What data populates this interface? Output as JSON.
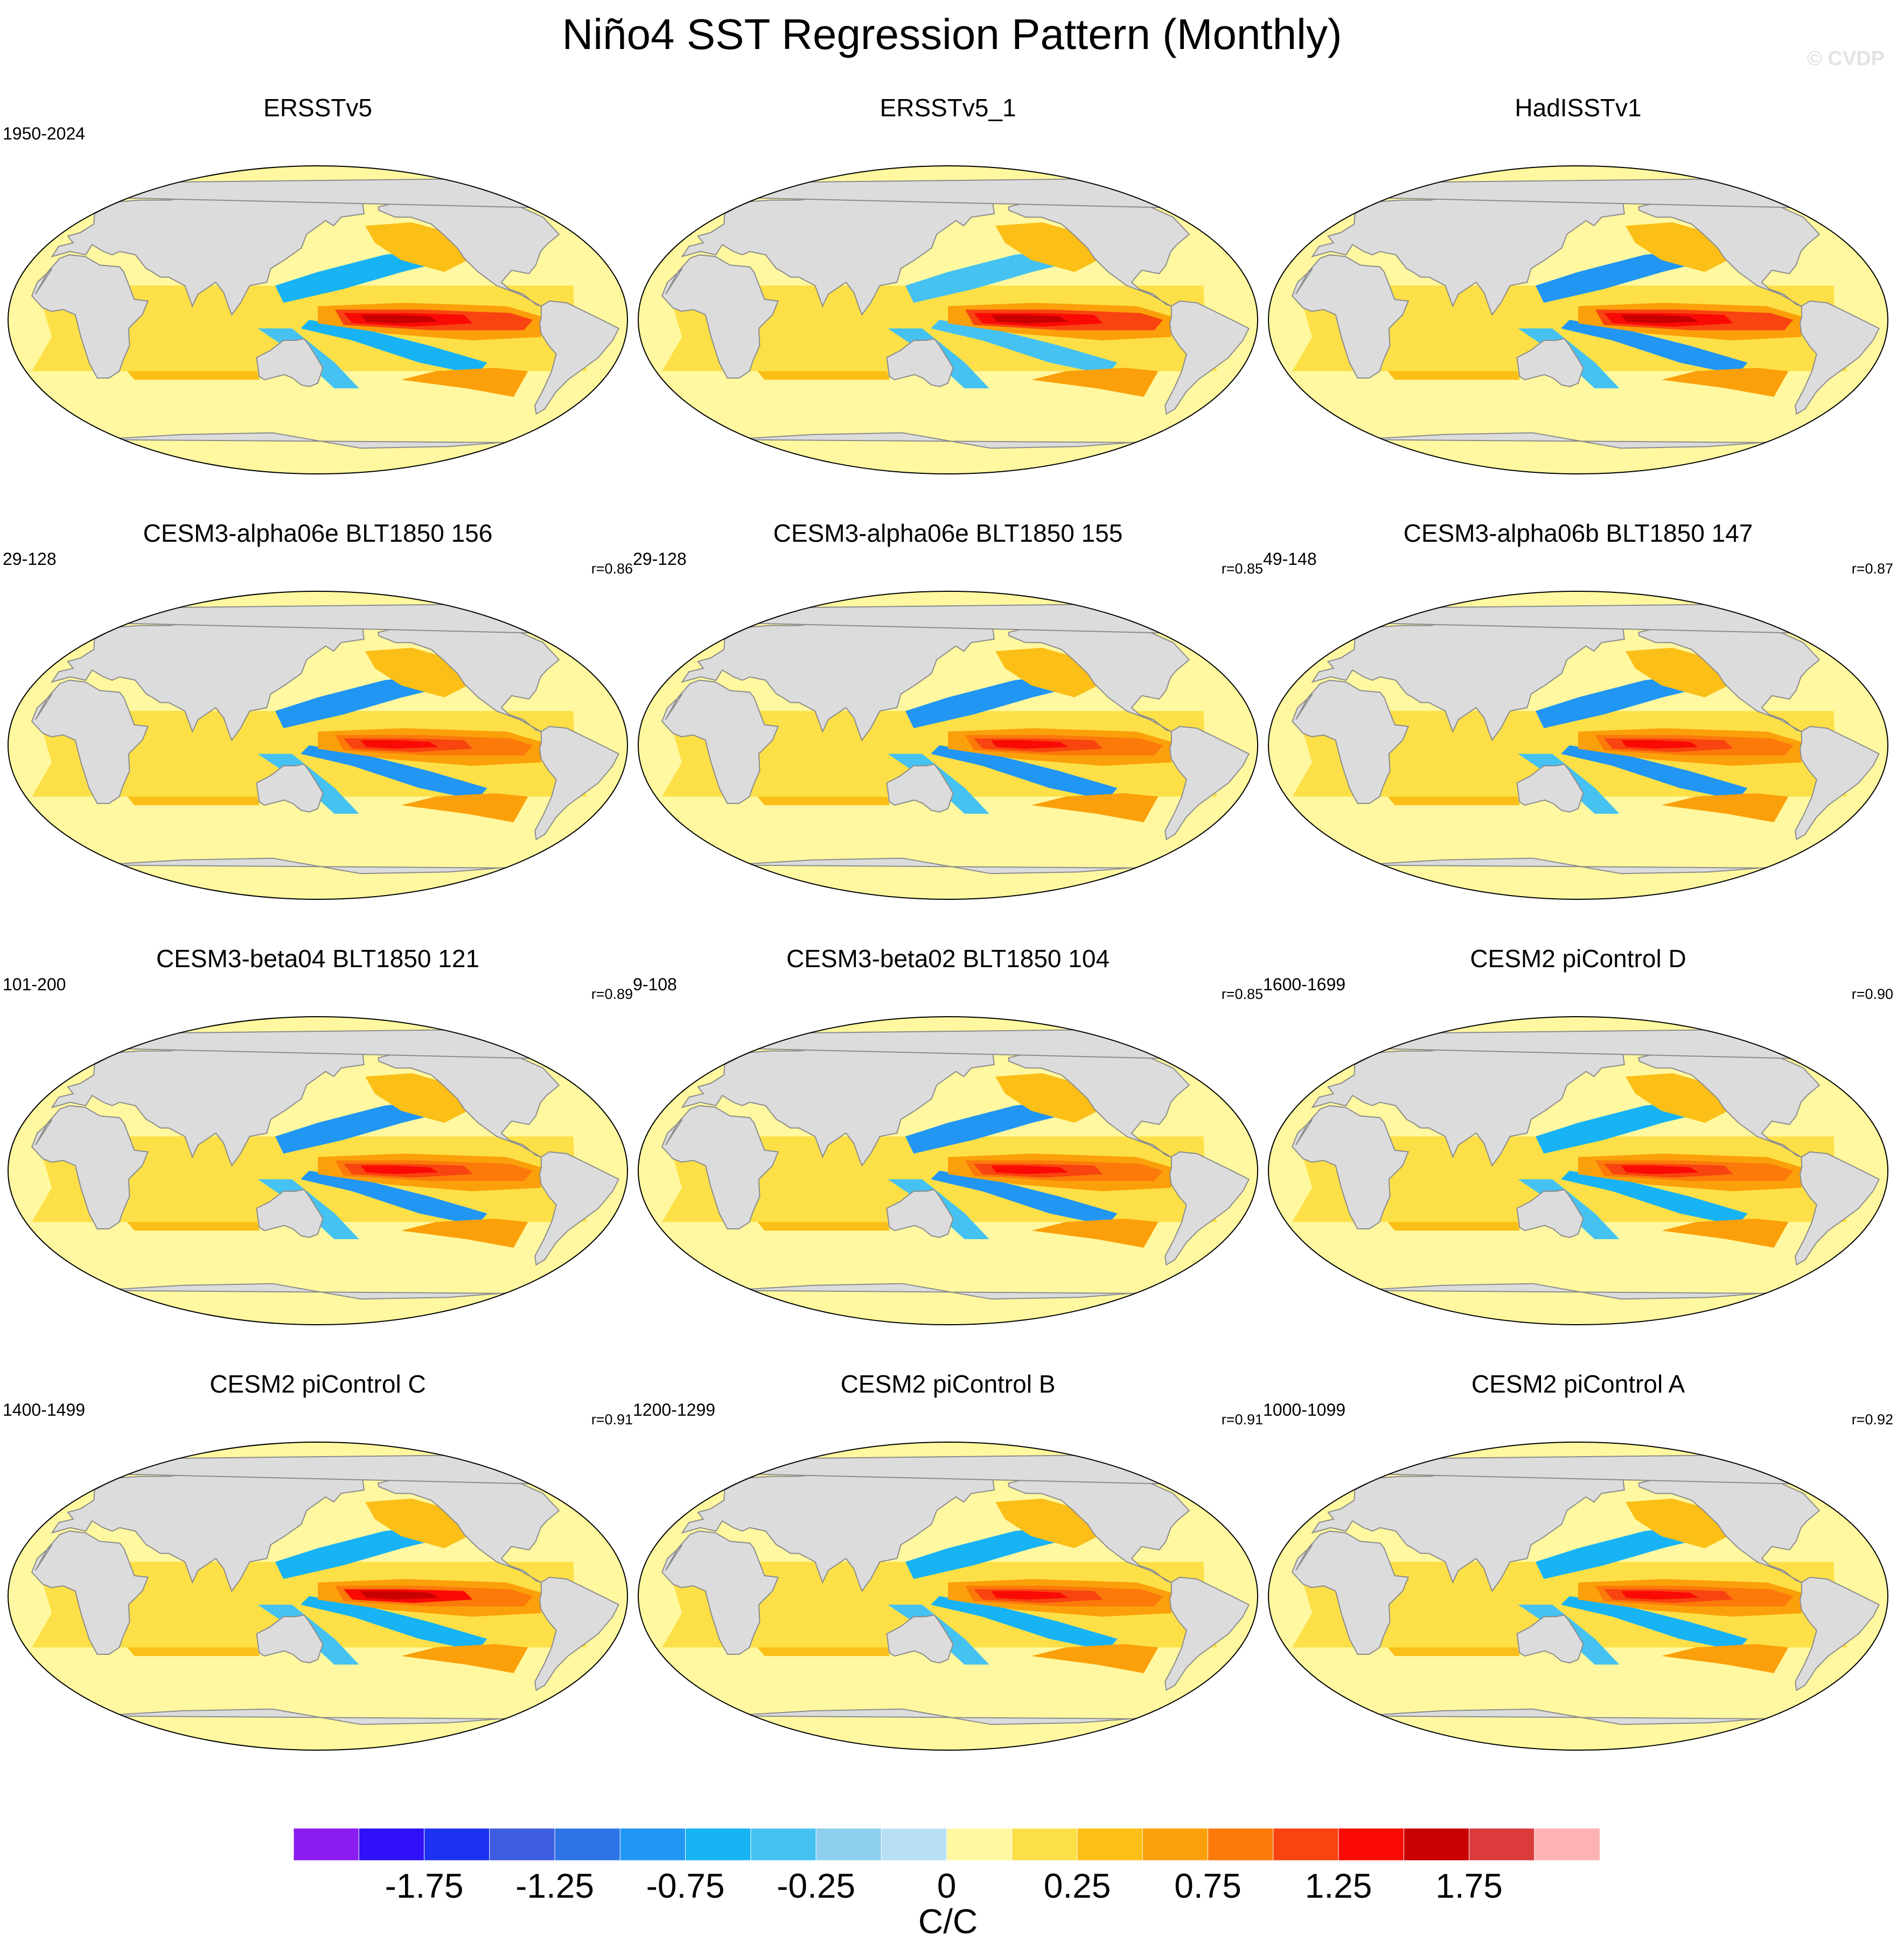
{
  "title": "Niño4 SST Regression Pattern (Monthly)",
  "watermark": "© CVDP",
  "chart_data": {
    "type": "heatmap",
    "projection": "robinson",
    "variable": "SST regression onto Niño4 index",
    "units": "C/C",
    "colorbar": {
      "levels": [
        -2.0,
        -1.75,
        -1.5,
        -1.25,
        -1.0,
        -0.75,
        -0.5,
        -0.25,
        -0.1,
        0.0,
        0.1,
        0.25,
        0.5,
        0.75,
        1.0,
        1.25,
        1.5,
        1.75,
        2.0
      ],
      "colors": [
        "#8a1cf0",
        "#3010fa",
        "#1d32f0",
        "#3d5ce0",
        "#2f74e6",
        "#2196f3",
        "#17b3f5",
        "#45c2f2",
        "#8ecfee",
        "#b8e0f5",
        "#fff8a0",
        "#fde047",
        "#fbbf17",
        "#fba00a",
        "#fb7a0a",
        "#f84410",
        "#fa0a05",
        "#c80000",
        "#dc3b3b",
        "#feb3b3"
      ],
      "tick_labels": [
        "-1.75",
        "-1.25",
        "-0.75",
        "-0.25",
        "0",
        "0.25",
        "0.75",
        "1.25",
        "1.75"
      ],
      "tick_values": [
        -1.75,
        -1.25,
        -0.75,
        -0.25,
        0.0,
        0.25,
        0.75,
        1.25,
        1.75
      ]
    },
    "panels": [
      {
        "title": "ERSSTv5",
        "years": "1950-2024",
        "r": "",
        "central_pacific_max": 1.6,
        "east_pacific_max": 1.1,
        "offequator_min": -0.6
      },
      {
        "title": "ERSSTv5_1",
        "years": "",
        "r": "",
        "central_pacific_max": 1.6,
        "east_pacific_max": 1.0,
        "offequator_min": -0.5
      },
      {
        "title": "HadISSTv1",
        "years": "",
        "r": "",
        "central_pacific_max": 1.7,
        "east_pacific_max": 1.2,
        "offequator_min": -0.8
      },
      {
        "title": "CESM3-alpha06e BLT1850 156",
        "years": "29-128",
        "r": "r=0.86",
        "central_pacific_max": 1.3,
        "east_pacific_max": 0.9,
        "offequator_min": -0.8
      },
      {
        "title": "CESM3-alpha06e BLT1850 155",
        "years": "29-128",
        "r": "r=0.85",
        "central_pacific_max": 1.3,
        "east_pacific_max": 0.9,
        "offequator_min": -0.8
      },
      {
        "title": "CESM3-alpha06b BLT1850 147",
        "years": "49-148",
        "r": "r=0.87",
        "central_pacific_max": 1.3,
        "east_pacific_max": 0.9,
        "offequator_min": -0.8
      },
      {
        "title": "CESM3-beta04 BLT1850 121",
        "years": "101-200",
        "r": "r=0.89",
        "central_pacific_max": 1.3,
        "east_pacific_max": 0.9,
        "offequator_min": -0.8
      },
      {
        "title": "CESM3-beta02 BLT1850 104",
        "years": "9-108",
        "r": "r=0.85",
        "central_pacific_max": 1.3,
        "east_pacific_max": 0.9,
        "offequator_min": -0.8
      },
      {
        "title": "CESM2 piControl D",
        "years": "1600-1699",
        "r": "r=0.90",
        "central_pacific_max": 1.4,
        "east_pacific_max": 0.8,
        "offequator_min": -0.7
      },
      {
        "title": "CESM2 piControl C",
        "years": "1400-1499",
        "r": "r=0.91",
        "central_pacific_max": 1.5,
        "east_pacific_max": 0.8,
        "offequator_min": -0.7
      },
      {
        "title": "CESM2 piControl B",
        "years": "1200-1299",
        "r": "r=0.91",
        "central_pacific_max": 1.4,
        "east_pacific_max": 0.8,
        "offequator_min": -0.7
      },
      {
        "title": "CESM2 piControl A",
        "years": "1000-1099",
        "r": "r=0.92",
        "central_pacific_max": 1.4,
        "east_pacific_max": 0.8,
        "offequator_min": -0.7
      }
    ]
  }
}
